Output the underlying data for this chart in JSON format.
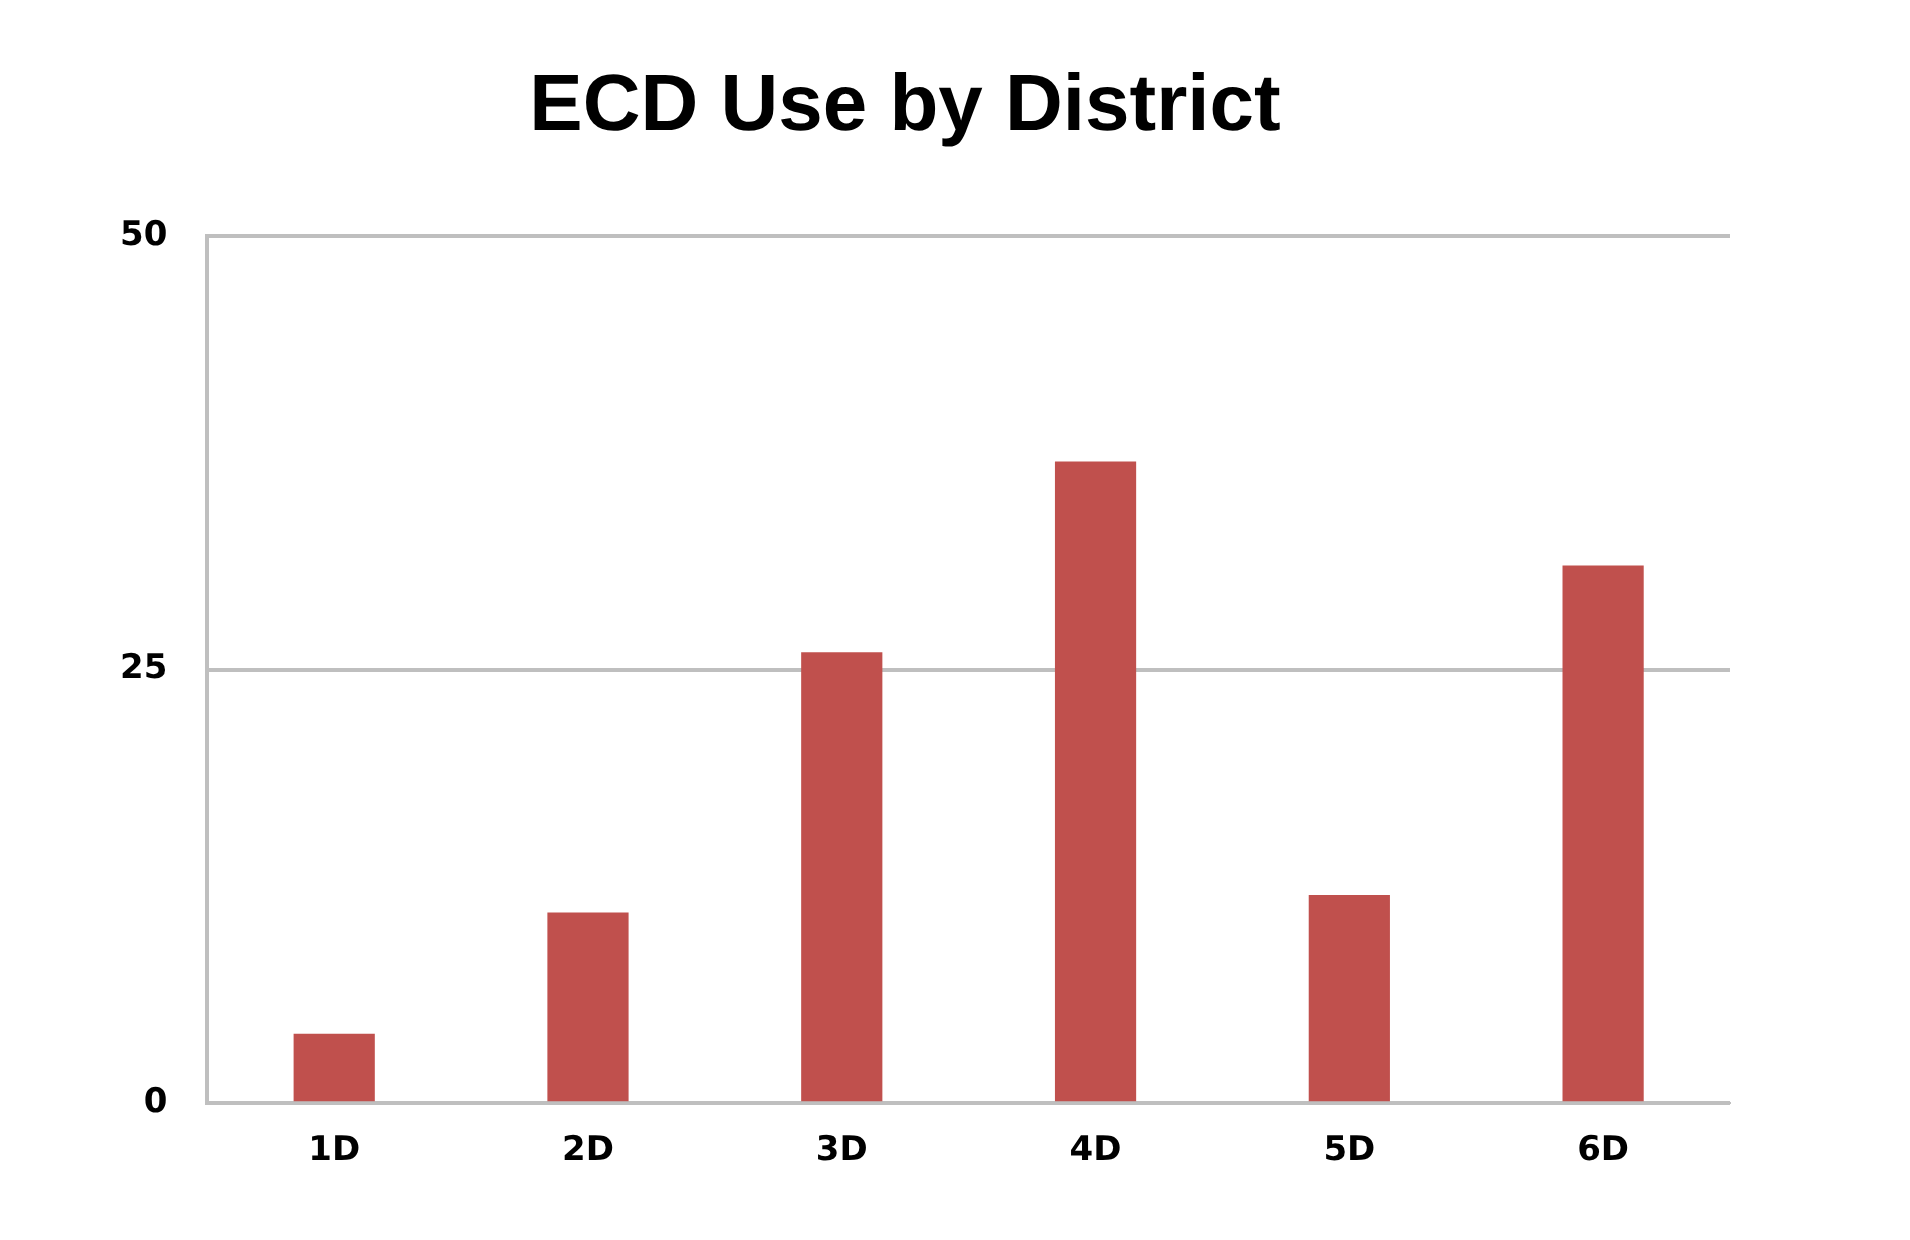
{
  "chart_data": {
    "type": "bar",
    "title": "ECD Use by District",
    "categories": [
      "1D",
      "2D",
      "3D",
      "4D",
      "5D",
      "6D"
    ],
    "values": [
      4,
      11,
      26,
      37,
      12,
      31
    ],
    "color": "#c0504d",
    "ylim": [
      0,
      50
    ],
    "yticks": [
      0,
      25,
      50
    ],
    "grid": "y",
    "legend": false
  }
}
